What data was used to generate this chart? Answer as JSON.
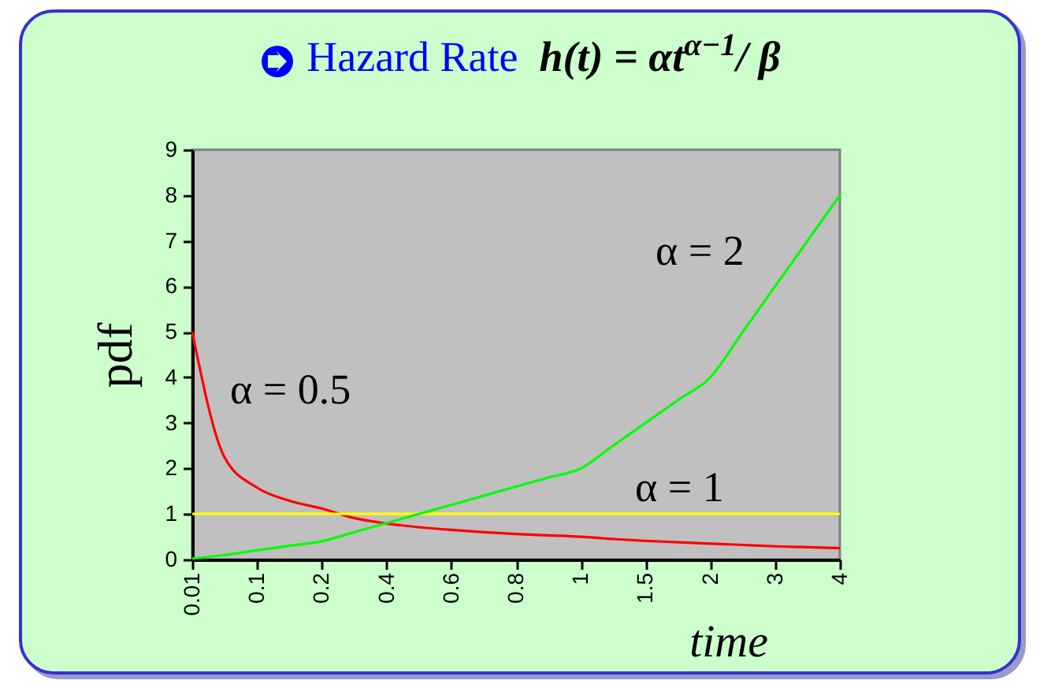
{
  "chart_data": {
    "type": "line",
    "title": "Hazard Rate  h(t) = αt$^{α−1}$/ β",
    "xlabel": "time",
    "ylabel": "pdf",
    "categories": [
      "0.01",
      null,
      "0.1",
      null,
      "0.2",
      null,
      "0.4",
      null,
      "0.6",
      null,
      "0.8",
      null,
      "1",
      null,
      "1.5",
      null,
      "2",
      null,
      "3",
      null,
      "4"
    ],
    "series": [
      {
        "name": "α = 0.5",
        "color": "#ff0000",
        "values": [
          5,
          2.24,
          1.58,
          1.29,
          1.12,
          0.91,
          0.79,
          0.71,
          0.65,
          0.6,
          0.56,
          0.53,
          0.5,
          0.45,
          0.41,
          0.38,
          0.35,
          0.32,
          0.29,
          0.27,
          0.25
        ]
      },
      {
        "name": "α = 1",
        "color": "#ffff00",
        "values": [
          1,
          1,
          1,
          1,
          1,
          1,
          1,
          1,
          1,
          1,
          1,
          1,
          1,
          1,
          1,
          1,
          1,
          1,
          1,
          1,
          1
        ]
      },
      {
        "name": "α = 2",
        "color": "#00ff00",
        "values": [
          0.02,
          0.1,
          0.2,
          0.3,
          0.4,
          0.6,
          0.8,
          1,
          1.2,
          1.4,
          1.6,
          1.8,
          2,
          2.5,
          3,
          3.5,
          4,
          5,
          6,
          7,
          8
        ]
      }
    ],
    "ylim": [
      0,
      9
    ],
    "yticks": [
      0,
      1,
      2,
      3,
      4,
      5,
      6,
      7,
      8,
      9
    ],
    "grid": false,
    "legend": false
  }
}
